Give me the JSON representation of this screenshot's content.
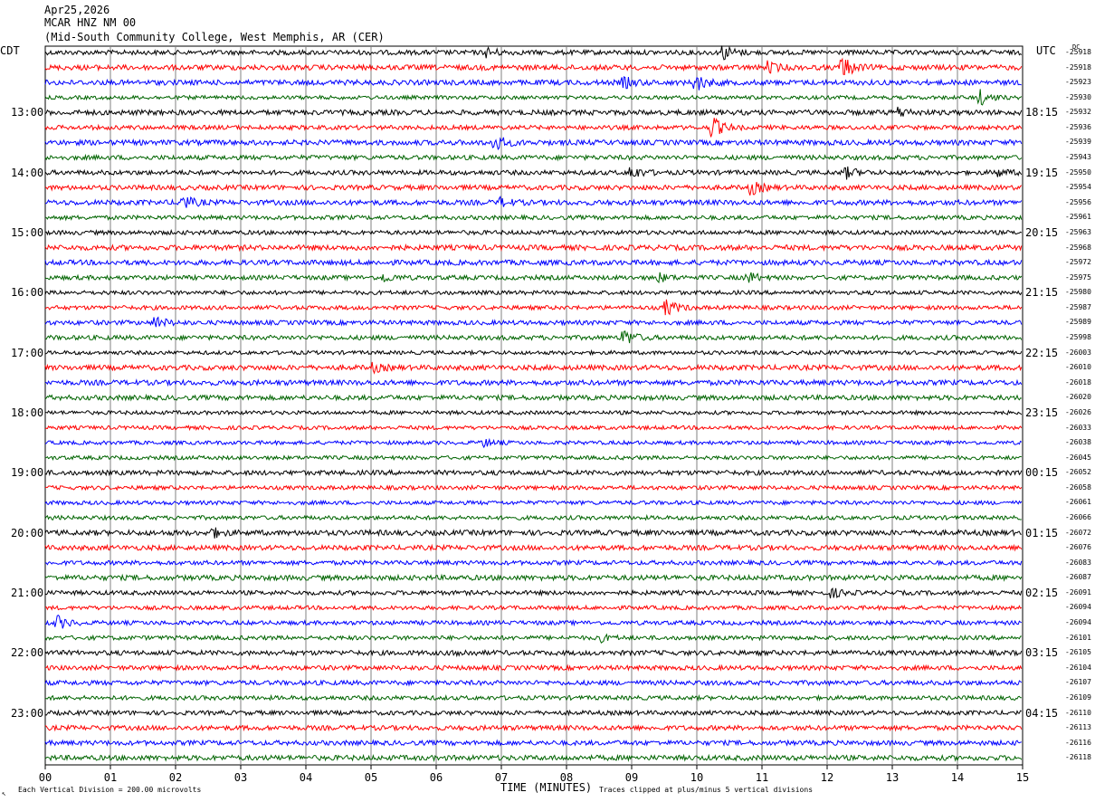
{
  "header": {
    "date": "Apr25,2026",
    "station": "MCAR HNZ NM 00",
    "location": "(Mid-South Community College, West Memphis, AR (CER)"
  },
  "left_tz": "CDT",
  "right_tz": "UTC",
  "dc_label": "DC",
  "footer": {
    "scale": "Each Vertical Division =  200.00 microvolts",
    "xlabel": "TIME (MINUTES)",
    "clip": "Traces clipped at plus/minus 5 vertical divisions",
    "cursor_mark": "↖"
  },
  "colors": {
    "trace_cycle": [
      "#000000",
      "#ff0000",
      "#0000ff",
      "#006400"
    ],
    "grid": "#808080"
  },
  "chart_data": {
    "type": "line",
    "title": "Apr25,2026 MCAR HNZ NM 00",
    "xlabel": "TIME (MINUTES)",
    "ylabel": "",
    "xlim": [
      0,
      15
    ],
    "x_ticks": [
      "00",
      "01",
      "02",
      "03",
      "04",
      "05",
      "06",
      "07",
      "08",
      "09",
      "10",
      "11",
      "12",
      "13",
      "14",
      "15"
    ],
    "left_hour_labels": [
      "13:00",
      "14:00",
      "15:00",
      "16:00",
      "17:00",
      "18:00",
      "19:00",
      "20:00",
      "21:00",
      "22:00",
      "23:00"
    ],
    "right_hour_labels": [
      "18:15",
      "19:15",
      "20:15",
      "21:15",
      "22:15",
      "23:15",
      "00:15",
      "01:15",
      "02:15",
      "03:15",
      "04:15"
    ],
    "trace_count": 48,
    "dc_offsets": [
      "-25918",
      "-25918",
      "-25923",
      "-25930",
      "-25932",
      "-25936",
      "-25939",
      "-25943",
      "-25950",
      "-25954",
      "-25956",
      "-25961",
      "-25963",
      "-25968",
      "-25972",
      "-25975",
      "-25980",
      "-25987",
      "-25989",
      "-25998",
      "-26003",
      "-26010",
      "-26018",
      "-26020",
      "-26026",
      "-26033",
      "-26038",
      "-26045",
      "-26052",
      "-26058",
      "-26061",
      "-26066",
      "-26072",
      "-26076",
      "-26083",
      "-26087",
      "-26091",
      "-26094",
      "-26094",
      "-26101",
      "-26105",
      "-26104",
      "-26107",
      "-26109",
      "-26110",
      "-26113",
      "-26116",
      "-26118"
    ],
    "events": [
      {
        "trace": 0,
        "minute": 10.4,
        "amp": 3.0
      },
      {
        "trace": 0,
        "minute": 6.8,
        "amp": 1.6
      },
      {
        "trace": 1,
        "minute": 12.25,
        "amp": 4.0
      },
      {
        "trace": 1,
        "minute": 11.1,
        "amp": 2.0
      },
      {
        "trace": 2,
        "minute": 10.0,
        "amp": 3.0
      },
      {
        "trace": 2,
        "minute": 8.9,
        "amp": 1.8
      },
      {
        "trace": 3,
        "minute": 14.35,
        "amp": 3.0
      },
      {
        "trace": 4,
        "minute": 13.1,
        "amp": 1.8
      },
      {
        "trace": 5,
        "minute": 10.25,
        "amp": 4.0
      },
      {
        "trace": 6,
        "minute": 6.9,
        "amp": 3.0
      },
      {
        "trace": 8,
        "minute": 9.0,
        "amp": 2.5
      },
      {
        "trace": 8,
        "minute": 12.3,
        "amp": 2.0
      },
      {
        "trace": 8,
        "minute": 14.6,
        "amp": 1.5
      },
      {
        "trace": 9,
        "minute": 10.85,
        "amp": 2.5
      },
      {
        "trace": 10,
        "minute": 2.1,
        "amp": 3.0
      },
      {
        "trace": 10,
        "minute": 7.0,
        "amp": 1.5
      },
      {
        "trace": 15,
        "minute": 5.2,
        "amp": 1.5
      },
      {
        "trace": 15,
        "minute": 9.4,
        "amp": 1.8
      },
      {
        "trace": 15,
        "minute": 10.8,
        "amp": 2.0
      },
      {
        "trace": 17,
        "minute": 9.55,
        "amp": 3.0
      },
      {
        "trace": 18,
        "minute": 1.7,
        "amp": 2.2
      },
      {
        "trace": 19,
        "minute": 8.9,
        "amp": 3.0
      },
      {
        "trace": 21,
        "minute": 5.05,
        "amp": 1.4
      },
      {
        "trace": 26,
        "minute": 6.7,
        "amp": 1.8
      },
      {
        "trace": 32,
        "minute": 2.55,
        "amp": 2.0
      },
      {
        "trace": 36,
        "minute": 12.1,
        "amp": 1.5
      },
      {
        "trace": 38,
        "minute": 0.2,
        "amp": 2.5
      },
      {
        "trace": 39,
        "minute": 8.5,
        "amp": 1.6
      },
      {
        "trace": 40,
        "minute": 6.3,
        "amp": 1.5
      }
    ]
  }
}
